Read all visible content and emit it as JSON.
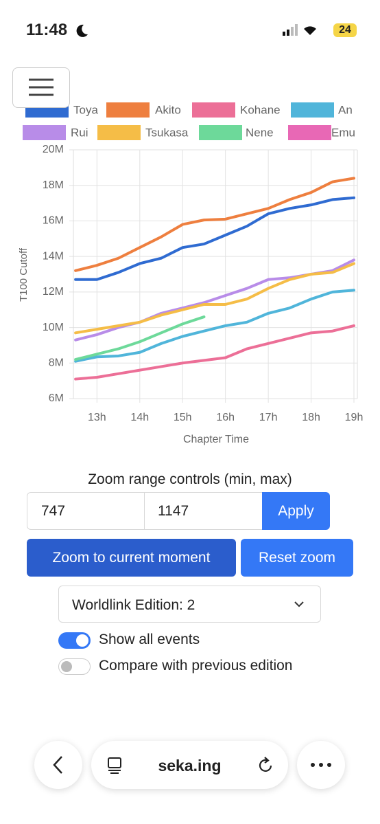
{
  "status_bar": {
    "time": "11:48",
    "battery": "24"
  },
  "chart_data": {
    "type": "line",
    "y_label": "T100 Cutoff",
    "x_label": "Chapter Time",
    "x": [
      12.5,
      13,
      13.5,
      14,
      14.5,
      15,
      15.5,
      16,
      16.5,
      17,
      17.5,
      18,
      18.5,
      19
    ],
    "series": [
      {
        "name": "Toya",
        "color": "#2f6bd1",
        "values": [
          12700000,
          12700000,
          13100000,
          13600000,
          13900000,
          14500000,
          14700000,
          15200000,
          15700000,
          16400000,
          16700000,
          16900000,
          17200000,
          17300000
        ]
      },
      {
        "name": "Akito",
        "color": "#ee7f3f",
        "values": [
          13200000,
          13500000,
          13900000,
          14500000,
          15100000,
          15800000,
          16050000,
          16100000,
          16400000,
          16700000,
          17200000,
          17600000,
          18200000,
          18400000
        ]
      },
      {
        "name": "Kohane",
        "color": "#ec6f97",
        "values": [
          7100000,
          7200000,
          7400000,
          7600000,
          7800000,
          8000000,
          8150000,
          8300000,
          8800000,
          9100000,
          9400000,
          9700000,
          9800000,
          10100000
        ]
      },
      {
        "name": "An",
        "color": "#50b5da",
        "values": [
          8100000,
          8350000,
          8400000,
          8600000,
          9100000,
          9500000,
          9800000,
          10100000,
          10300000,
          10800000,
          11100000,
          11600000,
          12000000,
          12100000
        ]
      },
      {
        "name": "Rui",
        "color": "#b88ce8",
        "values": [
          9300000,
          9600000,
          10000000,
          10300000,
          10800000,
          11100000,
          11400000,
          11800000,
          12200000,
          12700000,
          12800000,
          13000000,
          13200000,
          13800000
        ]
      },
      {
        "name": "Tsukasa",
        "color": "#f5bd47",
        "values": [
          9700000,
          9900000,
          10100000,
          10300000,
          10700000,
          11000000,
          11300000,
          11300000,
          11600000,
          12200000,
          12700000,
          13000000,
          13100000,
          13600000
        ]
      },
      {
        "name": "Nene",
        "color": "#6dd99a",
        "values": [
          8200000,
          8500000,
          8800000,
          9200000,
          9700000,
          10200000,
          10600000,
          null,
          null,
          null,
          null,
          null,
          null,
          null
        ]
      },
      {
        "name": "Emu",
        "color": "#e868b5",
        "values": [
          null,
          null,
          null,
          null,
          null,
          null,
          null,
          null,
          null,
          null,
          null,
          null,
          null,
          null
        ]
      }
    ],
    "xlim": [
      12.45,
      19.08
    ],
    "ylim": [
      6000000,
      20000000
    ],
    "xticks": [
      {
        "value": 13,
        "label": "13h"
      },
      {
        "value": 14,
        "label": "14h"
      },
      {
        "value": 15,
        "label": "15h"
      },
      {
        "value": 16,
        "label": "16h"
      },
      {
        "value": 17,
        "label": "17h"
      },
      {
        "value": 18,
        "label": "18h"
      },
      {
        "value": 19,
        "label": "19h"
      }
    ],
    "yticks": [
      {
        "value": 6000000,
        "label": "6M"
      },
      {
        "value": 8000000,
        "label": "8M"
      },
      {
        "value": 10000000,
        "label": "10M"
      },
      {
        "value": 12000000,
        "label": "12M"
      },
      {
        "value": 14000000,
        "label": "14M"
      },
      {
        "value": 16000000,
        "label": "16M"
      },
      {
        "value": 18000000,
        "label": "18M"
      },
      {
        "value": 20000000,
        "label": "20M"
      }
    ],
    "grid": true
  },
  "controls": {
    "zoom_label": "Zoom range controls (min, max)",
    "zoom_min": "747",
    "zoom_max": "1147",
    "apply": "Apply",
    "zoom_current": "Zoom to current moment",
    "reset_zoom": "Reset zoom",
    "edition_select": "Worldlink Edition: 2",
    "show_all_events": "Show all events",
    "compare_previous": "Compare with previous edition"
  },
  "browser_bar": {
    "url": "seka.ing"
  }
}
